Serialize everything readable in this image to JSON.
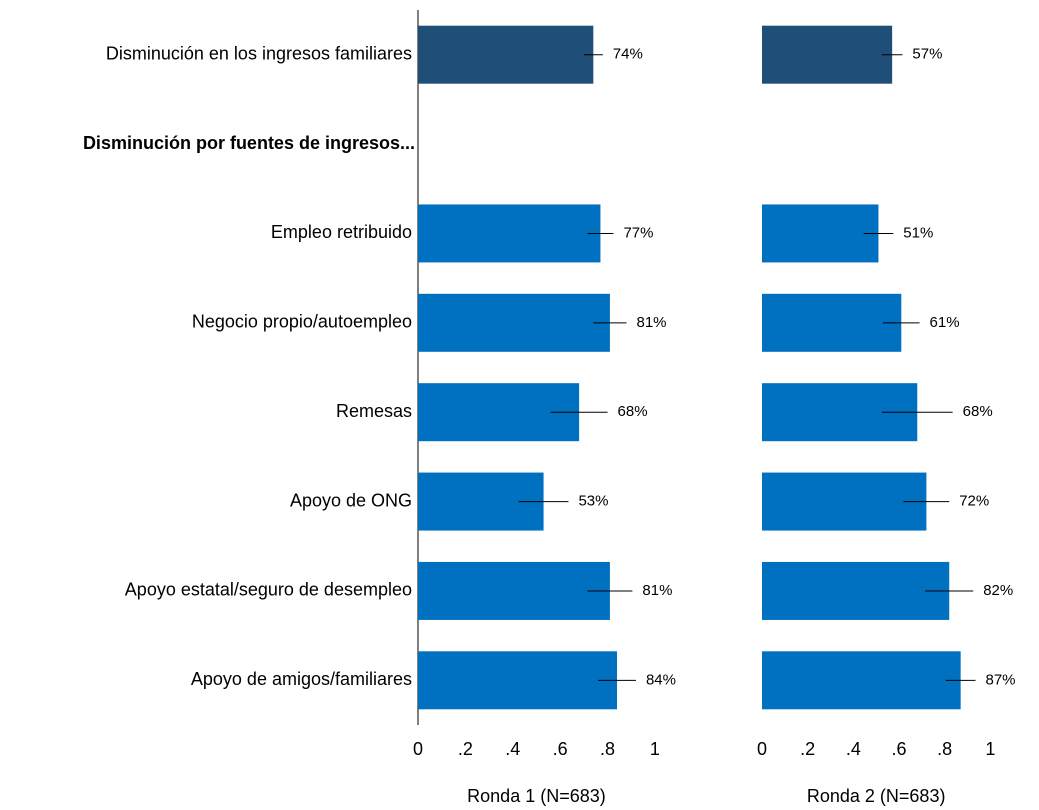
{
  "chart_data": [
    {
      "type": "bar",
      "orientation": "horizontal",
      "xlabel": "Ronda 1 (N=683)",
      "categories": [
        "Disminución en los ingresos familiares",
        "Disminución por fuentes de ingresos...",
        "Empleo retribuido",
        "Negocio propio/autoempleo",
        "Remesas",
        "Apoyo de ONG",
        "Apoyo estatal/seguro de desempleo",
        "Apoyo de amigos/familiares"
      ],
      "values": [
        0.74,
        null,
        0.77,
        0.81,
        0.68,
        0.53,
        0.81,
        0.84
      ],
      "errors": [
        0.04,
        null,
        0.055,
        0.07,
        0.12,
        0.105,
        0.095,
        0.08
      ],
      "value_labels": [
        "74%",
        null,
        "77%",
        "81%",
        "68%",
        "53%",
        "81%",
        "84%"
      ],
      "colors": [
        "#1f4e79",
        null,
        "#0070c0",
        "#0070c0",
        "#0070c0",
        "#0070c0",
        "#0070c0",
        "#0070c0"
      ],
      "xlim": [
        0,
        1.3
      ],
      "xticks": [
        0,
        {
          "value": 0.2,
          "label": ".2"
        },
        {
          "value": 0.4,
          "label": ".4"
        },
        {
          "value": 0.6,
          "label": ".6"
        },
        {
          "value": 0.8,
          "label": ".8"
        },
        1
      ],
      "grid": false
    },
    {
      "type": "bar",
      "orientation": "horizontal",
      "xlabel": "Ronda 2 (N=683)",
      "values": [
        0.57,
        null,
        0.51,
        0.61,
        0.68,
        0.72,
        0.82,
        0.87
      ],
      "errors": [
        0.045,
        null,
        0.065,
        0.08,
        0.155,
        0.1,
        0.105,
        0.065
      ],
      "value_labels": [
        "57%",
        null,
        "51%",
        "61%",
        "68%",
        "72%",
        "82%",
        "87%"
      ],
      "colors": [
        "#1f4e79",
        null,
        "#0070c0",
        "#0070c0",
        "#0070c0",
        "#0070c0",
        "#0070c0",
        "#0070c0"
      ],
      "xlim": [
        0,
        1.2
      ],
      "xticks": [
        0,
        {
          "value": 0.2,
          "label": ".2"
        },
        {
          "value": 0.4,
          "label": ".4"
        },
        {
          "value": 0.6,
          "label": ".6"
        },
        {
          "value": 0.8,
          "label": ".8"
        },
        1
      ],
      "grid": false
    }
  ]
}
